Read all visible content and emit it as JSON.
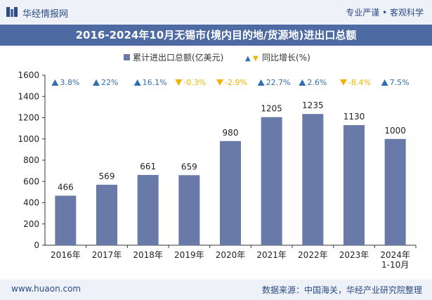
{
  "header": {
    "brand": "华经情报网",
    "tagline": "专业严谨 • 客观科学"
  },
  "footer": {
    "site": "www.huaon.com",
    "source": "数据来源：中国海关，华经产业研究院整理"
  },
  "chart_data": {
    "type": "bar",
    "title": "2016-2024年10月无锡市(境内目的地/货源地)进出口总额",
    "categories": [
      "2016年",
      "2017年",
      "2018年",
      "2019年",
      "2020年",
      "2021年",
      "2022年",
      "2023年",
      "2024年 1-10月"
    ],
    "series": [
      {
        "name": "累计进出口总额(亿美元)",
        "values": [
          466,
          569,
          661,
          659,
          980,
          1205,
          1235,
          1130,
          1000
        ],
        "color": "#6a7aa8"
      },
      {
        "name": "同比增长(%)",
        "values": [
          3.8,
          22,
          16.1,
          -0.3,
          -2.9,
          22.7,
          2.6,
          -8.4,
          7.5
        ]
      }
    ],
    "growth_labels": [
      "3.8%",
      "22%",
      "16.1%",
      "-0.3%",
      "-2.9%",
      "22.7%",
      "2.6%",
      "-8.4%",
      "7.5%"
    ],
    "ylim": [
      0,
      1600
    ],
    "yticks": [
      0,
      200,
      400,
      600,
      800,
      1000,
      1200,
      1400,
      1600
    ],
    "legend_position": "top-center",
    "grid": false,
    "colors": {
      "up": "#2f6fb0",
      "down": "#f0b400",
      "bar": "#6a7aa8"
    }
  }
}
